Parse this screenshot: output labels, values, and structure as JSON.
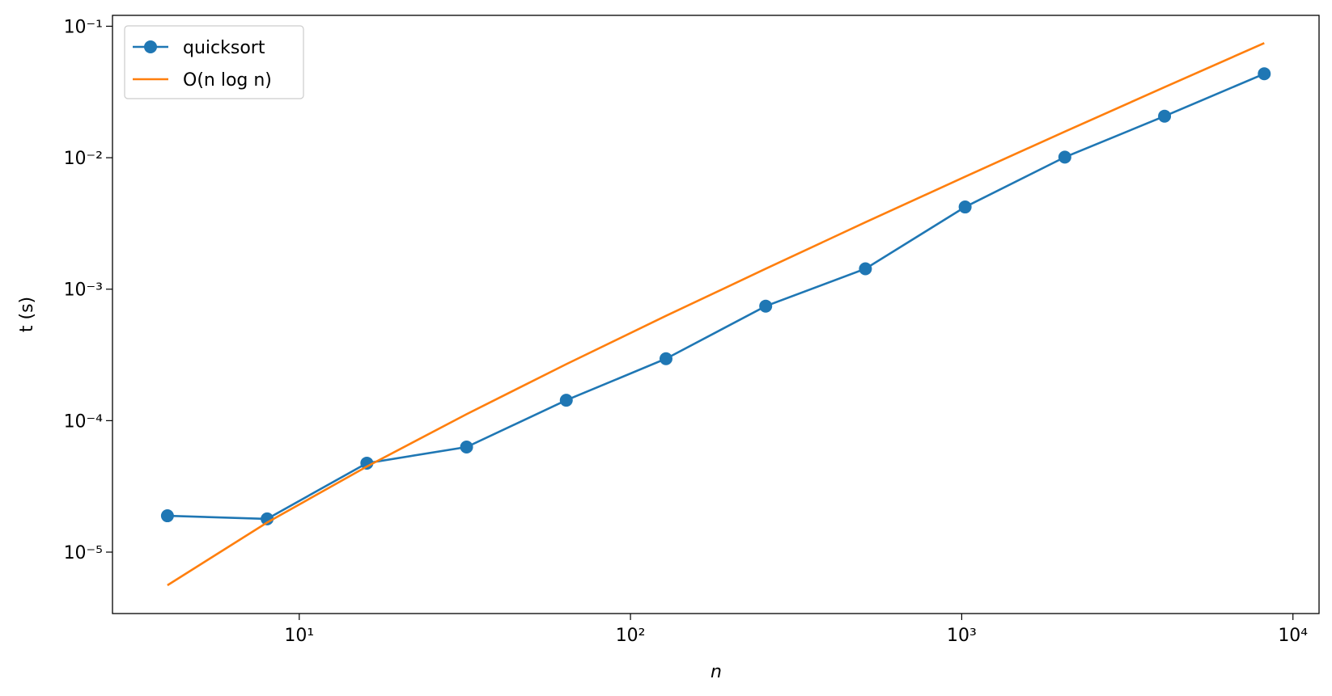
{
  "chart_data": {
    "type": "line",
    "xlabel": "n",
    "ylabel": "t (s)",
    "xscale": "log",
    "yscale": "log",
    "x": [
      4,
      8,
      16,
      32,
      64,
      128,
      256,
      512,
      1024,
      2048,
      4096,
      8192
    ],
    "series": [
      {
        "name": "quicksort",
        "color": "#1f77b4",
        "marker": "o",
        "values": [
          1.89e-05,
          1.79e-05,
          4.75e-05,
          6.3e-05,
          0.000143,
          0.000296,
          0.000743,
          0.00143,
          0.00422,
          0.0101,
          0.0207,
          0.0435
        ]
      },
      {
        "name": "O(n log n)",
        "color": "#ff7f0e",
        "values": [
          5.6e-06,
          1.68e-05,
          4.48e-05,
          0.000112,
          0.000269,
          0.000627,
          0.00143,
          0.00323,
          0.00717,
          0.0158,
          0.0344,
          0.0745
        ]
      }
    ],
    "xlim": [
      2.73,
      11990
    ],
    "ylim": [
      3.41e-06,
      0.121
    ],
    "xticks": [
      {
        "value": 10,
        "label": "10¹"
      },
      {
        "value": 100,
        "label": "10²"
      },
      {
        "value": 1000,
        "label": "10³"
      },
      {
        "value": 10000,
        "label": "10⁴"
      }
    ],
    "yticks": [
      {
        "value": 1e-05,
        "label": "10⁻⁵"
      },
      {
        "value": 0.0001,
        "label": "10⁻⁴"
      },
      {
        "value": 0.001,
        "label": "10⁻³"
      },
      {
        "value": 0.01,
        "label": "10⁻²"
      },
      {
        "value": 0.1,
        "label": "10⁻¹"
      }
    ],
    "legend": "upper left"
  }
}
